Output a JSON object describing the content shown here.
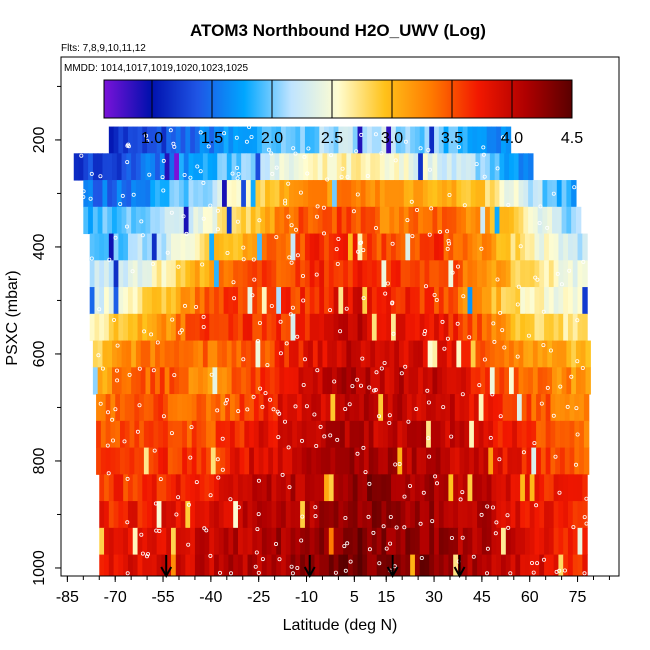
{
  "chart_data": {
    "type": "heatmap",
    "title": "ATOM3 Northbound H2O_UWV (Log)",
    "flights_label": "Flts: 7,8,9,10,11,12",
    "dates_label": "MMDD: 1014,1017,1019,1020,1023,1025",
    "xlabel": "Latitude (deg N)",
    "ylabel": "PSXC (mbar)",
    "xlim": [
      -87,
      88
    ],
    "ylim": [
      1015,
      45
    ],
    "y_reversed": true,
    "x_ticks": [
      "-85",
      "-70",
      "-55",
      "-40",
      "-25",
      "-10",
      "5",
      "15",
      "30",
      "45",
      "60",
      "75"
    ],
    "y_ticks": [
      "200",
      "400",
      "600",
      "800",
      "1000"
    ],
    "colorbar": {
      "range": [
        0.6,
        4.5
      ],
      "ticks": [
        "1.0",
        "1.5",
        "2.0",
        "2.5",
        "3.0",
        "3.5",
        "4.0",
        "4.5"
      ],
      "colors": [
        "#7a12d9",
        "#0010ad",
        "#1f55e5",
        "#00a6ff",
        "#bfe4ff",
        "#fffdd0",
        "#ffc21a",
        "#ff7a00",
        "#f21800",
        "#b00000",
        "#5a0000"
      ]
    },
    "pressure_levels": [
      200,
      250,
      300,
      350,
      400,
      450,
      500,
      550,
      600,
      650,
      700,
      750,
      800,
      850,
      900,
      950,
      1000
    ],
    "lat_extent": {
      "200": [
        -72,
        53
      ],
      "250": [
        -83,
        60
      ],
      "300": [
        -80,
        74
      ],
      "350": [
        -80,
        75
      ],
      "400": [
        -78,
        77
      ],
      "450": [
        -78,
        77
      ],
      "500": [
        -78,
        77
      ],
      "550": [
        -78,
        77
      ],
      "600": [
        -77,
        78
      ],
      "650": [
        -77,
        78
      ],
      "700": [
        -76,
        78
      ],
      "750": [
        -76,
        78
      ],
      "800": [
        -76,
        78
      ],
      "850": [
        -75,
        78
      ],
      "900": [
        -75,
        78
      ],
      "950": [
        -75,
        78
      ],
      "1000": [
        -75,
        78
      ]
    },
    "log_h2o_profile": [
      {
        "lat": -80,
        "values": [
          1.3,
          1.25,
          1.5,
          1.9,
          1.9,
          2.1,
          2.2,
          2.4,
          2.6,
          2.8,
          3.1,
          3.4,
          3.5,
          3.6,
          3.7,
          3.8,
          3.8
        ]
      },
      {
        "lat": -70,
        "values": [
          1.2,
          1.3,
          1.5,
          1.9,
          2.0,
          2.3,
          2.5,
          2.9,
          3.1,
          3.3,
          3.4,
          3.5,
          3.6,
          3.6,
          3.7,
          3.8,
          3.8
        ]
      },
      {
        "lat": -55,
        "values": [
          1.3,
          1.6,
          1.8,
          2.1,
          2.2,
          2.6,
          2.9,
          3.2,
          3.4,
          3.5,
          3.5,
          3.5,
          3.6,
          3.7,
          3.8,
          3.9,
          3.9
        ]
      },
      {
        "lat": -40,
        "values": [
          1.6,
          1.8,
          2.2,
          2.5,
          2.8,
          3.2,
          3.5,
          3.6,
          3.4,
          3.2,
          3.3,
          3.5,
          3.6,
          3.8,
          3.9,
          4.0,
          4.0
        ]
      },
      {
        "lat": -25,
        "values": [
          1.8,
          2.2,
          2.8,
          3.0,
          3.3,
          3.5,
          3.6,
          3.6,
          3.5,
          3.6,
          3.7,
          3.8,
          3.9,
          4.0,
          4.0,
          4.1,
          4.1
        ]
      },
      {
        "lat": -10,
        "values": [
          2.0,
          2.5,
          3.2,
          3.5,
          3.6,
          3.6,
          3.6,
          3.7,
          3.8,
          3.9,
          3.9,
          4.0,
          4.0,
          4.1,
          4.1,
          4.2,
          4.2
        ]
      },
      {
        "lat": 5,
        "values": [
          2.2,
          2.6,
          3.3,
          3.6,
          3.7,
          3.7,
          3.9,
          4.0,
          4.0,
          4.1,
          4.1,
          4.1,
          4.2,
          4.3,
          4.3,
          4.4,
          4.4
        ]
      },
      {
        "lat": 15,
        "values": [
          2.2,
          2.5,
          3.2,
          3.3,
          3.5,
          3.6,
          3.7,
          3.8,
          3.9,
          4.0,
          4.0,
          4.0,
          4.1,
          4.2,
          4.2,
          4.3,
          4.3
        ]
      },
      {
        "lat": 30,
        "values": [
          2.0,
          2.4,
          3.1,
          3.4,
          3.6,
          3.6,
          3.6,
          3.8,
          3.9,
          4.0,
          4.0,
          4.0,
          4.1,
          4.1,
          4.2,
          4.2,
          4.3
        ]
      },
      {
        "lat": 45,
        "values": [
          1.7,
          2.1,
          2.9,
          3.2,
          3.3,
          3.3,
          3.1,
          3.4,
          3.6,
          3.7,
          3.8,
          3.9,
          3.9,
          4.0,
          4.1,
          4.1,
          4.1
        ]
      },
      {
        "lat": 60,
        "values": [
          1.4,
          1.6,
          2.2,
          2.6,
          2.6,
          2.7,
          2.6,
          2.8,
          3.1,
          3.4,
          3.5,
          3.6,
          3.7,
          3.8,
          3.8,
          3.9,
          3.9
        ]
      },
      {
        "lat": 75,
        "values": [
          1.2,
          1.3,
          1.7,
          2.0,
          2.2,
          2.4,
          2.5,
          2.7,
          3.0,
          3.2,
          3.3,
          3.4,
          3.5,
          3.6,
          3.6,
          3.7,
          3.7
        ]
      }
    ],
    "arrow_markers_lat": [
      -54,
      -9,
      17,
      38
    ],
    "grid": false,
    "legend": "colorbar top"
  }
}
